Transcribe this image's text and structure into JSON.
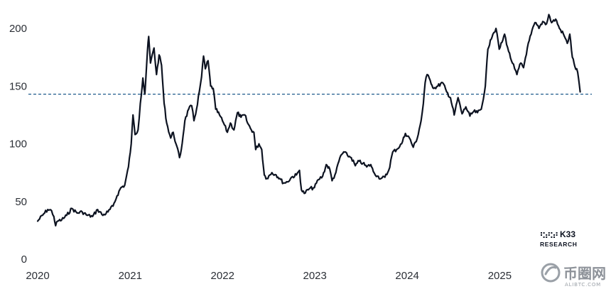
{
  "chart_data": {
    "type": "line",
    "title": "",
    "xlabel": "",
    "ylabel": "",
    "x_range": [
      "2020-01-01",
      "2025-12-31"
    ],
    "ylim": [
      0,
      215
    ],
    "x_ticks": [
      "2020",
      "2021",
      "2022",
      "2023",
      "2024",
      "2025"
    ],
    "y_ticks": [
      "0",
      "50",
      "100",
      "150",
      "200"
    ],
    "grid": false,
    "legend": "none",
    "reference_line": {
      "y": 143,
      "style": "dashed",
      "color": "#1f5a8c"
    },
    "series": [
      {
        "color": "#0d1321",
        "points": [
          [
            "2020-01-01",
            33
          ],
          [
            "2020-01-20",
            38
          ],
          [
            "2020-02-10",
            43
          ],
          [
            "2020-02-25",
            42
          ],
          [
            "2020-03-05",
            37
          ],
          [
            "2020-03-12",
            29
          ],
          [
            "2020-03-20",
            33
          ],
          [
            "2020-04-05",
            34
          ],
          [
            "2020-04-25",
            38
          ],
          [
            "2020-05-15",
            44
          ],
          [
            "2020-06-05",
            40
          ],
          [
            "2020-06-25",
            41
          ],
          [
            "2020-07-15",
            38
          ],
          [
            "2020-08-05",
            37
          ],
          [
            "2020-08-25",
            43
          ],
          [
            "2020-09-15",
            38
          ],
          [
            "2020-10-05",
            41
          ],
          [
            "2020-10-25",
            46
          ],
          [
            "2020-11-10",
            55
          ],
          [
            "2020-11-25",
            62
          ],
          [
            "2020-12-10",
            64
          ],
          [
            "2020-12-25",
            80
          ],
          [
            "2021-01-05",
            100
          ],
          [
            "2021-01-12",
            125
          ],
          [
            "2021-01-20",
            108
          ],
          [
            "2021-02-01",
            112
          ],
          [
            "2021-02-10",
            135
          ],
          [
            "2021-02-20",
            157
          ],
          [
            "2021-02-28",
            143
          ],
          [
            "2021-03-10",
            180
          ],
          [
            "2021-03-15",
            193
          ],
          [
            "2021-03-22",
            170
          ],
          [
            "2021-04-05",
            183
          ],
          [
            "2021-04-15",
            160
          ],
          [
            "2021-04-25",
            177
          ],
          [
            "2021-05-05",
            168
          ],
          [
            "2021-05-15",
            135
          ],
          [
            "2021-05-25",
            118
          ],
          [
            "2021-06-10",
            105
          ],
          [
            "2021-06-20",
            110
          ],
          [
            "2021-07-01",
            100
          ],
          [
            "2021-07-15",
            88
          ],
          [
            "2021-07-22",
            95
          ],
          [
            "2021-08-05",
            120
          ],
          [
            "2021-08-20",
            130
          ],
          [
            "2021-09-01",
            133
          ],
          [
            "2021-09-10",
            120
          ],
          [
            "2021-09-20",
            130
          ],
          [
            "2021-10-01",
            145
          ],
          [
            "2021-10-10",
            158
          ],
          [
            "2021-10-18",
            176
          ],
          [
            "2021-10-25",
            165
          ],
          [
            "2021-11-05",
            172
          ],
          [
            "2021-11-15",
            150
          ],
          [
            "2021-11-25",
            148
          ],
          [
            "2021-12-05",
            130
          ],
          [
            "2021-12-20",
            125
          ],
          [
            "2022-01-05",
            118
          ],
          [
            "2022-01-20",
            110
          ],
          [
            "2022-02-01",
            118
          ],
          [
            "2022-02-15",
            112
          ],
          [
            "2022-03-01",
            127
          ],
          [
            "2022-03-15",
            123
          ],
          [
            "2022-03-30",
            125
          ],
          [
            "2022-04-10",
            118
          ],
          [
            "2022-04-25",
            112
          ],
          [
            "2022-05-05",
            110
          ],
          [
            "2022-05-12",
            95
          ],
          [
            "2022-05-25",
            100
          ],
          [
            "2022-06-05",
            95
          ],
          [
            "2022-06-15",
            73
          ],
          [
            "2022-06-25",
            70
          ],
          [
            "2022-07-15",
            75
          ],
          [
            "2022-08-01",
            73
          ],
          [
            "2022-08-15",
            70
          ],
          [
            "2022-08-30",
            66
          ],
          [
            "2022-09-15",
            67
          ],
          [
            "2022-10-01",
            71
          ],
          [
            "2022-10-20",
            73
          ],
          [
            "2022-11-01",
            77
          ],
          [
            "2022-11-09",
            60
          ],
          [
            "2022-11-20",
            57
          ],
          [
            "2022-12-10",
            61
          ],
          [
            "2022-12-30",
            62
          ],
          [
            "2023-01-15",
            69
          ],
          [
            "2023-02-01",
            72
          ],
          [
            "2023-02-15",
            82
          ],
          [
            "2023-03-01",
            78
          ],
          [
            "2023-03-10",
            68
          ],
          [
            "2023-03-25",
            75
          ],
          [
            "2023-04-10",
            88
          ],
          [
            "2023-04-25",
            93
          ],
          [
            "2023-05-10",
            90
          ],
          [
            "2023-05-25",
            88
          ],
          [
            "2023-06-10",
            81
          ],
          [
            "2023-06-25",
            85
          ],
          [
            "2023-07-10",
            83
          ],
          [
            "2023-07-25",
            80
          ],
          [
            "2023-08-10",
            82
          ],
          [
            "2023-08-20",
            76
          ],
          [
            "2023-09-05",
            72
          ],
          [
            "2023-09-20",
            70
          ],
          [
            "2023-10-05",
            71
          ],
          [
            "2023-10-20",
            77
          ],
          [
            "2023-11-05",
            93
          ],
          [
            "2023-11-20",
            95
          ],
          [
            "2023-12-10",
            100
          ],
          [
            "2023-12-25",
            109
          ],
          [
            "2024-01-10",
            105
          ],
          [
            "2024-01-25",
            97
          ],
          [
            "2024-02-10",
            105
          ],
          [
            "2024-02-25",
            120
          ],
          [
            "2024-03-05",
            135
          ],
          [
            "2024-03-12",
            153
          ],
          [
            "2024-03-20",
            160
          ],
          [
            "2024-04-01",
            155
          ],
          [
            "2024-04-15",
            148
          ],
          [
            "2024-05-01",
            150
          ],
          [
            "2024-05-20",
            153
          ],
          [
            "2024-06-05",
            145
          ],
          [
            "2024-06-20",
            140
          ],
          [
            "2024-07-05",
            125
          ],
          [
            "2024-07-20",
            140
          ],
          [
            "2024-08-05",
            126
          ],
          [
            "2024-08-20",
            132
          ],
          [
            "2024-09-05",
            124
          ],
          [
            "2024-09-20",
            128
          ],
          [
            "2024-10-05",
            127
          ],
          [
            "2024-10-20",
            130
          ],
          [
            "2024-11-05",
            150
          ],
          [
            "2024-11-15",
            182
          ],
          [
            "2024-11-25",
            190
          ],
          [
            "2024-12-05",
            195
          ],
          [
            "2024-12-17",
            200
          ],
          [
            "2024-12-30",
            182
          ],
          [
            "2025-01-10",
            188
          ],
          [
            "2025-01-20",
            195
          ],
          [
            "2025-02-05",
            180
          ],
          [
            "2025-02-20",
            170
          ],
          [
            "2025-03-01",
            165
          ],
          [
            "2025-03-10",
            160
          ],
          [
            "2025-03-25",
            170
          ],
          [
            "2025-04-05",
            166
          ],
          [
            "2025-04-20",
            183
          ],
          [
            "2025-05-05",
            195
          ],
          [
            "2025-05-20",
            205
          ],
          [
            "2025-06-05",
            200
          ],
          [
            "2025-06-20",
            206
          ],
          [
            "2025-07-05",
            204
          ],
          [
            "2025-07-14",
            212
          ],
          [
            "2025-07-25",
            205
          ],
          [
            "2025-08-10",
            208
          ],
          [
            "2025-08-25",
            200
          ],
          [
            "2025-09-10",
            195
          ],
          [
            "2025-09-25",
            187
          ],
          [
            "2025-10-05",
            195
          ],
          [
            "2025-10-15",
            175
          ],
          [
            "2025-10-25",
            167
          ],
          [
            "2025-11-05",
            162
          ],
          [
            "2025-11-15",
            145
          ]
        ]
      }
    ]
  },
  "branding": {
    "logo_top": "K33",
    "logo_bottom": "RESEARCH",
    "watermark_main": "币圈网",
    "watermark_sub": "ALIBTC.COM"
  },
  "colors": {
    "line": "#0d1321",
    "reference": "#1f5a8c",
    "tick_text": "#2b2f36",
    "watermark": "#8d9299"
  }
}
